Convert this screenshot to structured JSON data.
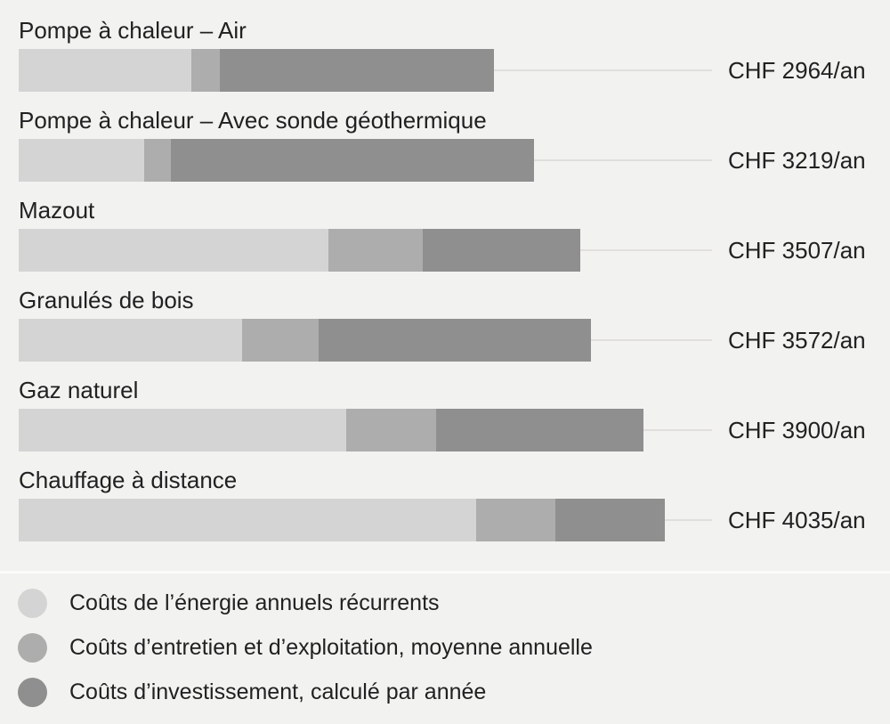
{
  "colors": {
    "background": "#f2f2f0",
    "separator": "#fbfbf9",
    "connector_line": "#e0dfdd",
    "text": "#212121"
  },
  "chart_data": {
    "type": "bar",
    "orientation": "horizontal",
    "stacked": true,
    "unit": "CHF/an",
    "axis_visible": false,
    "grid": false,
    "legend_position": "bottom",
    "xlim_chf": [
      0,
      4330
    ],
    "categories": [
      "Pompe à chaleur – Air",
      "Pompe à chaleur – Avec sonde géothermique",
      "Mazout",
      "Granulés de bois",
      "Gaz naturel",
      "Chauffage à distance"
    ],
    "totals": [
      2964,
      3219,
      3507,
      3572,
      3900,
      4035
    ],
    "total_labels": [
      "CHF 2964/an",
      "CHF 3219/an",
      "CHF 3507/an",
      "CHF 3572/an",
      "CHF 3900/an",
      "CHF 4035/an"
    ],
    "series": [
      {
        "name": "Coûts de l’énergie annuels récurrents",
        "color": "#d4d4d4",
        "values": [
          1077,
          784,
          1933,
          1394,
          2044,
          2855
        ]
      },
      {
        "name": "Coûts d’entretien et d’exploitation, moyenne annuelle",
        "color": "#adadad",
        "values": [
          181,
          168,
          588,
          476,
          563,
          494
        ]
      },
      {
        "name": "Coûts d’investissement, calculé par année",
        "color": "#8f8f8f",
        "values": [
          1706,
          2267,
          986,
          1702,
          1293,
          686
        ]
      }
    ]
  }
}
